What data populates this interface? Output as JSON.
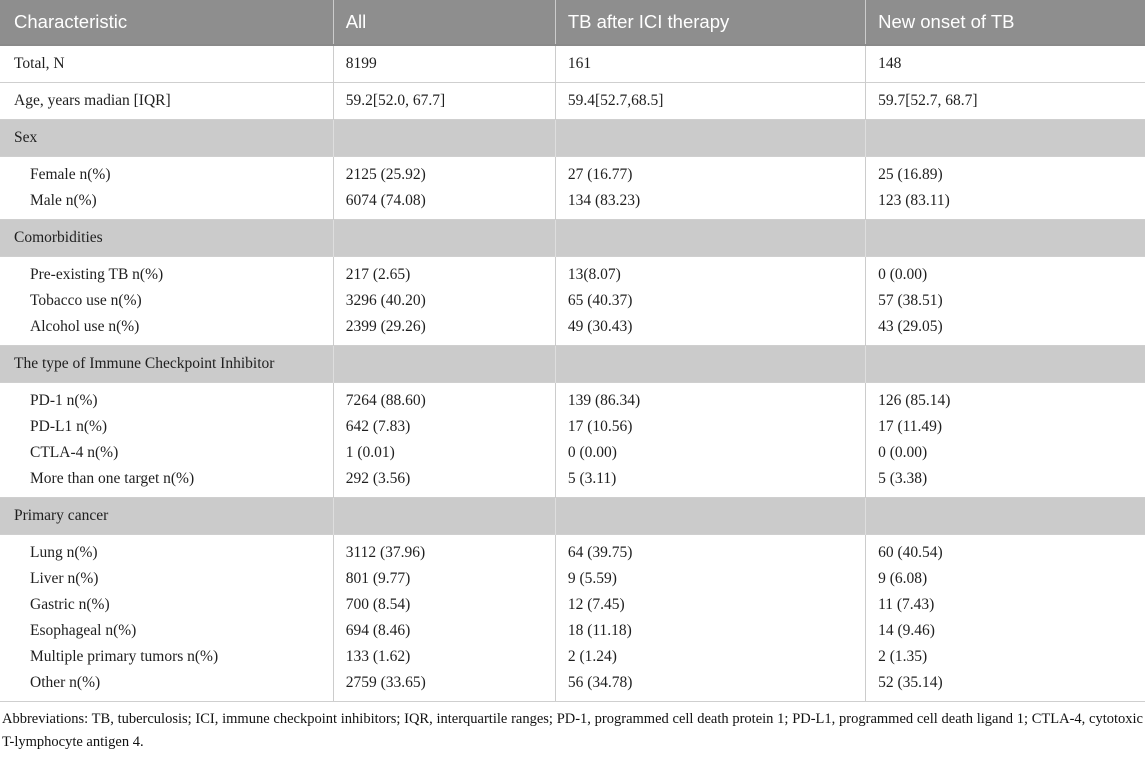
{
  "colors": {
    "header_bg": "#8e8e8e",
    "header_text": "#ffffff",
    "section_bg": "#cbcbcb",
    "body_text": "#1f1f1f",
    "border": "#cfcfcf"
  },
  "table": {
    "columns": [
      "Characteristic",
      "All",
      "TB after ICI therapy",
      "New onset of TB"
    ],
    "rows": [
      {
        "type": "group",
        "indent": false,
        "cells": [
          [
            "Total, N"
          ],
          [
            "8199"
          ],
          [
            "161"
          ],
          [
            "148"
          ]
        ]
      },
      {
        "type": "group",
        "indent": false,
        "cells": [
          [
            "Age, years madian [IQR]"
          ],
          [
            "59.2[52.0, 67.7]"
          ],
          [
            "59.4[52.7,68.5]"
          ],
          [
            "59.7[52.7, 68.7]"
          ]
        ]
      },
      {
        "type": "section",
        "label": "Sex"
      },
      {
        "type": "group",
        "indent": true,
        "cells": [
          [
            "Female n(%)",
            "Male n(%)"
          ],
          [
            "2125 (25.92)",
            "6074 (74.08)"
          ],
          [
            "27 (16.77)",
            "134 (83.23)"
          ],
          [
            "25 (16.89)",
            "123 (83.11)"
          ]
        ]
      },
      {
        "type": "section",
        "label": "Comorbidities"
      },
      {
        "type": "group",
        "indent": true,
        "cells": [
          [
            "Pre-existing TB n(%)",
            "Tobacco use n(%)",
            "Alcohol use n(%)"
          ],
          [
            "217 (2.65)",
            "3296 (40.20)",
            "2399 (29.26)"
          ],
          [
            "13(8.07)",
            "65 (40.37)",
            "49 (30.43)"
          ],
          [
            "0 (0.00)",
            "57 (38.51)",
            "43 (29.05)"
          ]
        ]
      },
      {
        "type": "section",
        "label": "The type of Immune Checkpoint Inhibitor"
      },
      {
        "type": "group",
        "indent": true,
        "cells": [
          [
            "PD-1 n(%)",
            "PD-L1 n(%)",
            "CTLA-4 n(%)",
            "More than one target n(%)"
          ],
          [
            "7264 (88.60)",
            "642 (7.83)",
            "1 (0.01)",
            "292 (3.56)"
          ],
          [
            "139 (86.34)",
            "17 (10.56)",
            "0 (0.00)",
            "5 (3.11)"
          ],
          [
            "126 (85.14)",
            "17 (11.49)",
            "0 (0.00)",
            "5 (3.38)"
          ]
        ]
      },
      {
        "type": "section",
        "label": "Primary cancer"
      },
      {
        "type": "group",
        "indent": true,
        "cells": [
          [
            "Lung n(%)",
            "Liver n(%)",
            "Gastric n(%)",
            "Esophageal n(%)",
            "Multiple primary tumors n(%)",
            "Other n(%)"
          ],
          [
            "3112 (37.96)",
            "801 (9.77)",
            "700 (8.54)",
            "694 (8.46)",
            "133 (1.62)",
            "2759 (33.65)"
          ],
          [
            "64 (39.75)",
            "9 (5.59)",
            "12 (7.45)",
            "18 (11.18)",
            "2 (1.24)",
            "56 (34.78)"
          ],
          [
            "60 (40.54)",
            "9 (6.08)",
            "11 (7.43)",
            "14 (9.46)",
            "2 (1.35)",
            "52 (35.14)"
          ]
        ]
      }
    ]
  },
  "footnote": {
    "text": "Abbreviations: TB, tuberculosis; ICI, immune checkpoint inhibitors; IQR, interquartile ranges; PD-1, programmed cell death protein 1; PD-L1, programmed cell death ligand 1; CTLA-4, cytotoxic T-lymphocyte antigen 4."
  }
}
